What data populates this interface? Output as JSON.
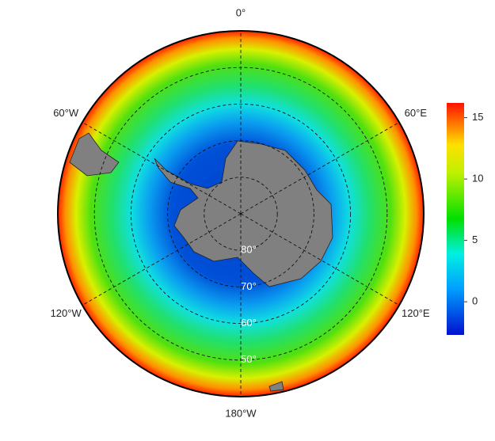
{
  "map": {
    "projection": "polar stereographic",
    "lat_range": [
      40,
      90
    ],
    "meridians": [
      {
        "value": 0,
        "label": "0°"
      },
      {
        "value": 60,
        "label": "60°E"
      },
      {
        "value": 120,
        "label": "120°E"
      },
      {
        "value": 180,
        "label": "180°W"
      },
      {
        "value": -120,
        "label": "120°W"
      },
      {
        "value": -60,
        "label": "60°W"
      }
    ],
    "parallels": [
      {
        "value": 80,
        "label": "80°"
      },
      {
        "value": 70,
        "label": "70°"
      },
      {
        "value": 60,
        "label": "60°"
      },
      {
        "value": 50,
        "label": "50°"
      }
    ],
    "colorbar": {
      "lim": [
        -2.7,
        16.2
      ],
      "ticks": [
        0,
        5,
        10,
        15
      ]
    }
  }
}
